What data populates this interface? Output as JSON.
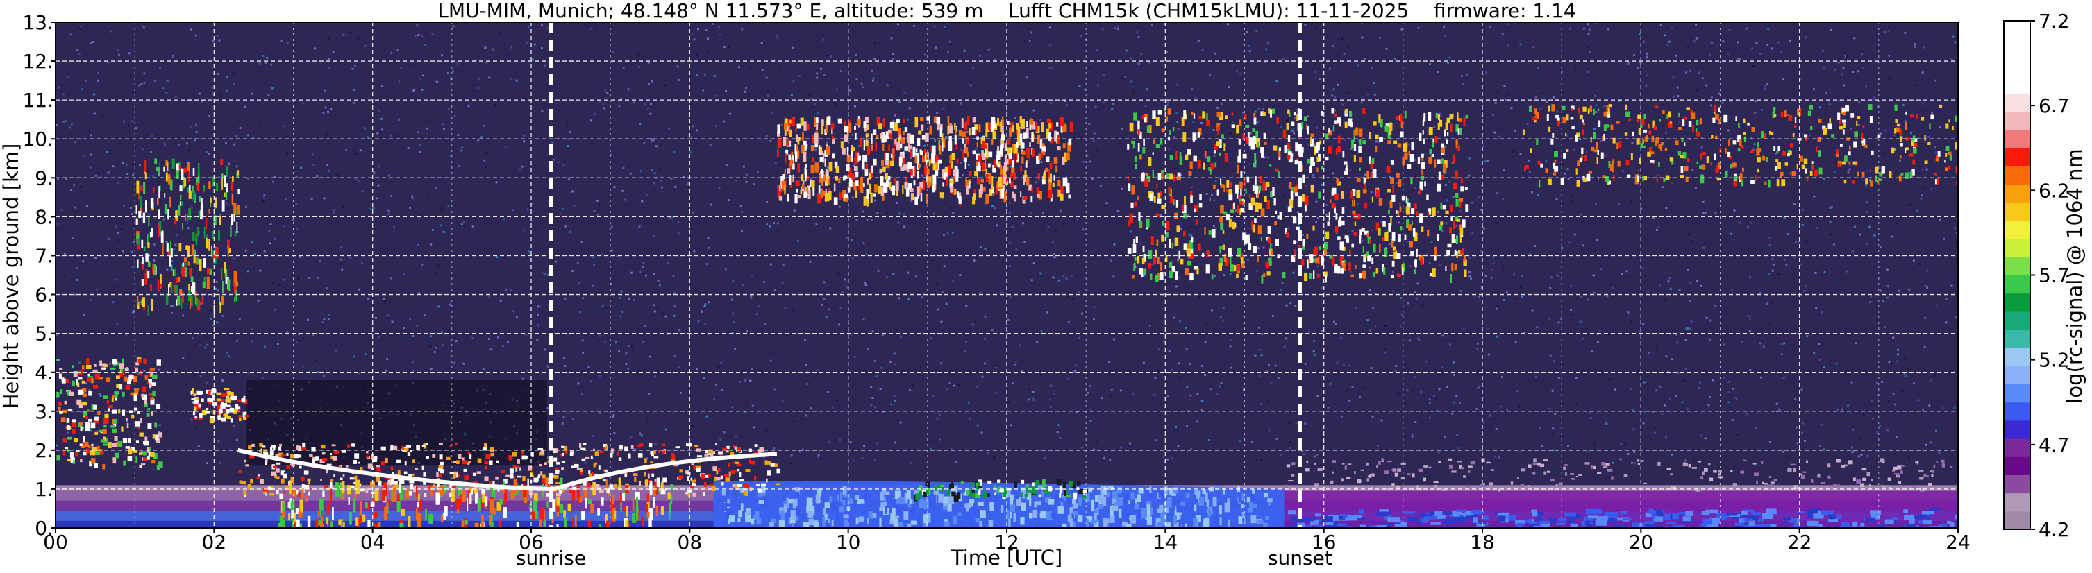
{
  "chart_data": {
    "type": "heatmap",
    "title": "LMU-MIM, Munich; 48.148° N 11.573° E, altitude: 539 m    Lufft CHM15k (CHM15kLMU): 11-11-2025    firmware: 1.14",
    "xlabel": "Time [UTC]",
    "ylabel": "Height above ground [km]",
    "colorbar_label": "log(rc-signal) @ 1064 nm",
    "xlim": [
      0,
      24
    ],
    "ylim": [
      0,
      13
    ],
    "x_ticks": [
      0,
      2,
      4,
      6,
      8,
      10,
      12,
      14,
      16,
      18,
      20,
      22,
      24
    ],
    "x_tick_labels": [
      "00",
      "02",
      "04",
      "06",
      "08",
      "10",
      "12",
      "14",
      "16",
      "18",
      "20",
      "22",
      "24"
    ],
    "y_ticks": [
      0,
      1,
      2,
      3,
      4,
      5,
      6,
      7,
      8,
      9,
      10,
      11,
      12,
      13
    ],
    "y_tick_labels": [
      "0.",
      "1.",
      "2.",
      "3.",
      "4.",
      "5.",
      "6.",
      "7.",
      "8.",
      "9.",
      "10.",
      "11.",
      "12.",
      "13."
    ],
    "colorbar_range": [
      4.2,
      7.2
    ],
    "colorbar_ticks": [
      "4.2",
      "4.7",
      "5.2",
      "5.7",
      "6.2",
      "6.7",
      "7.2"
    ],
    "grid": true,
    "markers": [
      {
        "label": "sunrise",
        "x": 6.25
      },
      {
        "label": "sunset",
        "x": 15.7
      }
    ],
    "colormap": [
      "#a08aa8",
      "#b09ab8",
      "#8a4aa0",
      "#6a0a8a",
      "#7a2a9a",
      "#3a2ad0",
      "#3a5af0",
      "#5a8af8",
      "#8ab0f8",
      "#9ac8f0",
      "#3ab8a8",
      "#1aa878",
      "#0a9a3a",
      "#3ac84a",
      "#7ae04a",
      "#c8f03a",
      "#f0f03a",
      "#f8c81a",
      "#f8a00a",
      "#f86a0a",
      "#f81a0a",
      "#f07a7a",
      "#f0b8b8",
      "#f8e0e0",
      "#ffffff",
      "#ffffff",
      "#ffffff",
      "#ffffff"
    ],
    "features": [
      {
        "kind": "boundary_layer",
        "x_start": 0,
        "x_end": 24,
        "y_start": 0,
        "y_end": 1.0
      },
      {
        "kind": "aerosol_layer",
        "x_start": 8.5,
        "x_end": 15.5,
        "y_start": 0.2,
        "y_end": 1.3
      },
      {
        "kind": "low_cloud",
        "x_start": 2.3,
        "x_end": 9.1,
        "y_start": 0.1,
        "y_end": 2.2
      },
      {
        "kind": "mid_cloud",
        "x_start": 0,
        "x_end": 1.3,
        "y_start": 1.5,
        "y_end": 4.4
      },
      {
        "kind": "mid_cloud",
        "x_start": 1.7,
        "x_end": 2.4,
        "y_start": 2.7,
        "y_end": 3.6
      },
      {
        "kind": "cirrus",
        "x_start": 1.0,
        "x_end": 2.3,
        "y_start": 5.7,
        "y_end": 9.5
      },
      {
        "kind": "cirrus",
        "x_start": 9.1,
        "x_end": 12.8,
        "y_start": 8.5,
        "y_end": 10.6
      },
      {
        "kind": "cirrus",
        "x_start": 13.5,
        "x_end": 17.8,
        "y_start": 6.5,
        "y_end": 10.8
      },
      {
        "kind": "cirrus",
        "x_start": 18.5,
        "x_end": 24,
        "y_start": 8.9,
        "y_end": 10.9
      }
    ]
  }
}
